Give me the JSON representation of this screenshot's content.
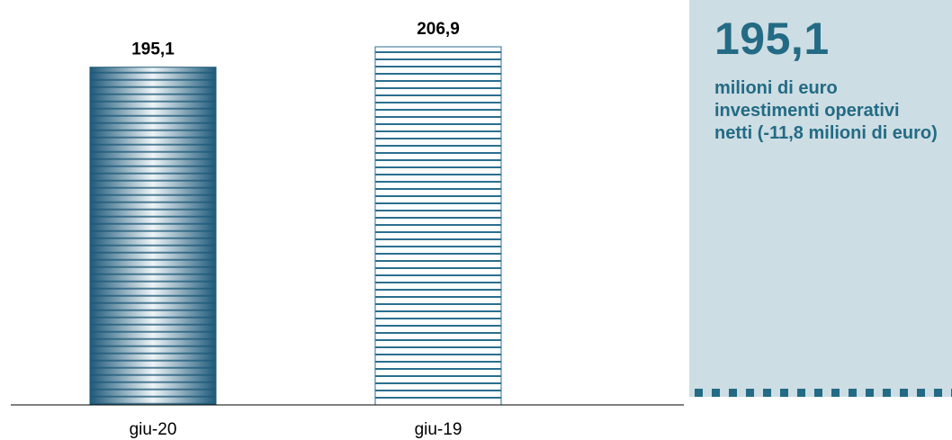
{
  "chart_data": {
    "type": "bar",
    "categories": [
      "giu-20",
      "giu-19"
    ],
    "values": [
      195.1,
      206.9
    ],
    "value_labels": [
      "195,1",
      "206,9"
    ],
    "ylim": [
      0,
      206.9
    ],
    "grid": false,
    "legend": "none"
  },
  "panel": {
    "headline": "195,1",
    "caption": "milioni di euro investimenti operativi netti (-11,8 milioni di euro)"
  },
  "colors": {
    "bar_primary": "#1f5a7a",
    "bar_primary_light": "#ffffff",
    "bar_secondary_stripe": "#2a6f8f",
    "panel_bg": "#cddde4",
    "accent_text": "#236b84",
    "axis": "#000000"
  }
}
